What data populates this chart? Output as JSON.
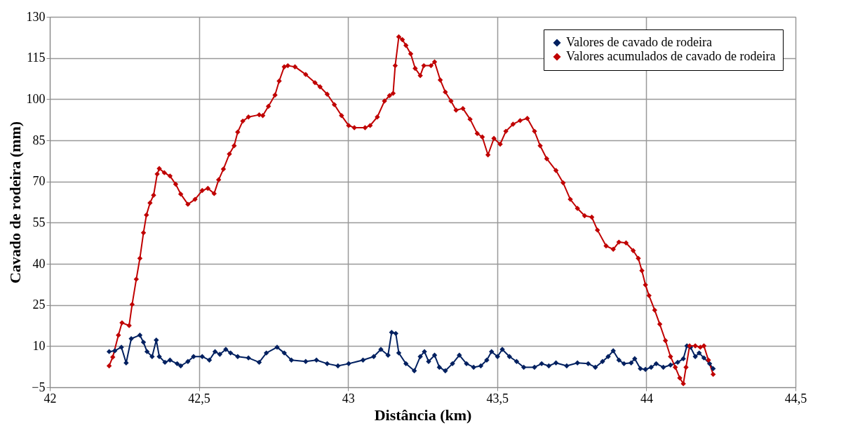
{
  "chart_data": {
    "type": "line",
    "xlabel": "Distância (km)",
    "ylabel": "Cavado de rodeira (mm)",
    "xlim": [
      42,
      44.5
    ],
    "xticks": [
      42,
      {
        "value": 42.5,
        "label": "42,5"
      },
      43,
      {
        "value": 43.5,
        "label": "43,5"
      },
      44,
      {
        "value": 44.5,
        "label": "44,5"
      }
    ],
    "ylim": [
      -5,
      130
    ],
    "yticks": [
      -5,
      10,
      25,
      40,
      55,
      70,
      85,
      100,
      115,
      130
    ],
    "grid": true,
    "legend": "top right",
    "marker": "diamond",
    "line_style": "solid",
    "series": [
      {
        "name": "Valores de cavado de rodeira",
        "color": "#002060",
        "x": [
          42.199,
          42.218,
          42.24,
          42.256,
          42.273,
          42.302,
          42.314,
          42.326,
          42.343,
          42.357,
          42.367,
          42.386,
          42.403,
          42.427,
          42.439,
          42.463,
          42.482,
          42.511,
          42.535,
          42.554,
          42.57,
          42.59,
          42.606,
          42.63,
          42.666,
          42.702,
          42.726,
          42.762,
          42.786,
          42.81,
          42.858,
          42.894,
          42.93,
          42.966,
          43.002,
          43.05,
          43.086,
          43.11,
          43.134,
          43.146,
          43.16,
          43.17,
          43.194,
          43.222,
          43.242,
          43.256,
          43.27,
          43.29,
          43.306,
          43.326,
          43.35,
          43.373,
          43.397,
          43.421,
          43.445,
          43.465,
          43.481,
          43.501,
          43.517,
          43.541,
          43.565,
          43.589,
          43.625,
          43.649,
          43.673,
          43.697,
          43.733,
          43.769,
          43.805,
          43.829,
          43.853,
          43.872,
          43.889,
          43.908,
          43.925,
          43.949,
          43.961,
          43.98,
          43.997,
          44.016,
          44.033,
          44.057,
          44.081,
          44.105,
          44.124,
          44.136,
          44.148,
          44.164,
          44.177,
          44.193,
          44.212,
          44.224
        ],
        "values": [
          8,
          8.3,
          9.6,
          3.9,
          12.7,
          14,
          11.4,
          8,
          6.2,
          12.2,
          6.2,
          4.1,
          4.9,
          3.6,
          2.8,
          4.4,
          6.2,
          6.2,
          4.9,
          8,
          7,
          8.8,
          7.5,
          6.2,
          5.7,
          4.1,
          7.5,
          9.6,
          7.5,
          4.9,
          4.4,
          4.9,
          3.6,
          2.8,
          3.6,
          4.9,
          6.2,
          8.8,
          6.7,
          15,
          14.6,
          7.5,
          3.6,
          1,
          6.2,
          8,
          4.4,
          6.7,
          2.3,
          1,
          3.6,
          6.7,
          3.6,
          2.3,
          2.8,
          4.9,
          8,
          6.2,
          8.8,
          6.2,
          4.4,
          2.3,
          2.3,
          3.6,
          2.8,
          3.9,
          2.8,
          3.9,
          3.6,
          2.3,
          4.4,
          6.2,
          8.3,
          4.9,
          3.6,
          3.9,
          5.4,
          1.8,
          1.5,
          2.3,
          3.6,
          2.3,
          3.1,
          4.1,
          5.4,
          10.1,
          9.6,
          6.2,
          7.5,
          5.7,
          3.6,
          1.8
        ]
      },
      {
        "name": "Valores acumulados de cavado de rodeira",
        "color": "#c00000",
        "x": [
          42.199,
          42.211,
          42.23,
          42.242,
          42.266,
          42.276,
          42.29,
          42.302,
          42.314,
          42.324,
          42.336,
          42.348,
          42.36,
          42.367,
          42.384,
          42.403,
          42.422,
          42.439,
          42.463,
          42.487,
          42.511,
          42.53,
          42.551,
          42.566,
          42.582,
          42.602,
          42.618,
          42.63,
          42.647,
          42.666,
          42.702,
          42.714,
          42.733,
          42.755,
          42.769,
          42.786,
          42.798,
          42.822,
          42.858,
          42.889,
          42.906,
          42.93,
          42.954,
          42.978,
          43.002,
          43.021,
          43.057,
          43.074,
          43.098,
          43.122,
          43.139,
          43.151,
          43.158,
          43.17,
          43.182,
          43.194,
          43.21,
          43.225,
          43.242,
          43.254,
          43.278,
          43.29,
          43.309,
          43.326,
          43.345,
          43.362,
          43.385,
          43.409,
          43.433,
          43.45,
          43.469,
          43.489,
          43.51,
          43.529,
          43.553,
          43.577,
          43.601,
          43.625,
          43.644,
          43.666,
          43.697,
          43.721,
          43.745,
          43.769,
          43.793,
          43.817,
          43.836,
          43.865,
          43.889,
          43.908,
          43.932,
          43.956,
          43.973,
          43.985,
          43.997,
          44.009,
          44.028,
          44.045,
          44.064,
          44.081,
          44.097,
          44.112,
          44.124,
          44.133,
          44.145,
          44.164,
          44.181,
          44.193,
          44.208,
          44.224
        ],
        "values": [
          2.8,
          6,
          14,
          18.5,
          17.5,
          25.2,
          34.4,
          42,
          51.3,
          57.8,
          62.2,
          65,
          72.7,
          74.7,
          73.2,
          72,
          69,
          65.4,
          61.7,
          63.5,
          66.7,
          67.5,
          65.6,
          70.6,
          74.5,
          80,
          83,
          88,
          92,
          93.5,
          94.3,
          94,
          97.4,
          101.5,
          106.6,
          111.8,
          112.2,
          111.8,
          109,
          106,
          104.5,
          101.8,
          98,
          94,
          90.4,
          89.6,
          89.6,
          90.4,
          93.5,
          99.3,
          101.3,
          102.1,
          112.2,
          122.7,
          121.7,
          119.6,
          116.5,
          111.2,
          108.6,
          112.2,
          112.2,
          113.6,
          107,
          102.6,
          99.3,
          96,
          96.6,
          92.7,
          87.5,
          86.2,
          79.7,
          85.7,
          83.6,
          88.3,
          90.9,
          92.2,
          93,
          88.3,
          83,
          78.3,
          74,
          69.5,
          63.5,
          60.2,
          57.5,
          57,
          52.3,
          46.5,
          45.3,
          47.9,
          47.6,
          44.8,
          42,
          37.5,
          32.3,
          28.4,
          23.1,
          18,
          12,
          6.2,
          2.3,
          -1.6,
          -3.7,
          2.3,
          10.1,
          10.1,
          9.6,
          10.1,
          4.9,
          -0.3
        ]
      }
    ]
  }
}
